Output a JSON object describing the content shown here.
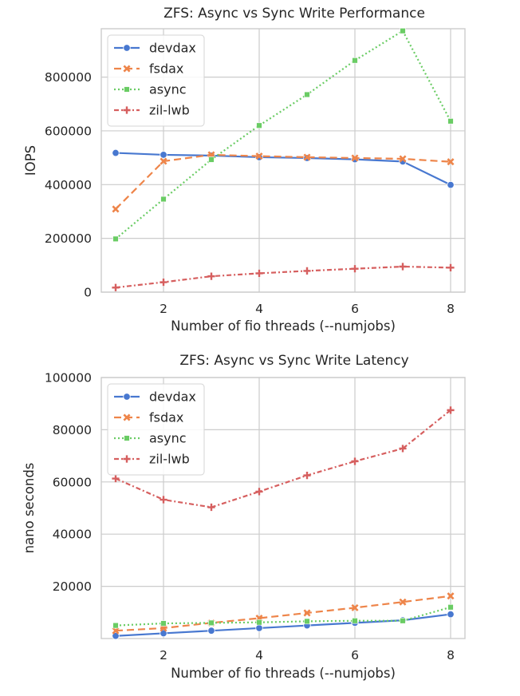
{
  "chart_data": [
    {
      "type": "line",
      "title": "ZFS: Async vs Sync Write Performance",
      "xlabel": "Number of fio threads (--numjobs)",
      "ylabel": "IOPS",
      "x": [
        1,
        2,
        3,
        4,
        5,
        6,
        7,
        8
      ],
      "xlim": [
        0.7,
        8.3
      ],
      "ylim": [
        0,
        980000
      ],
      "xticks": [
        2,
        4,
        6,
        8
      ],
      "yticks": [
        0,
        200000,
        400000,
        600000,
        800000
      ],
      "grid": true,
      "legend_position": "top-left",
      "series": [
        {
          "name": "devdax",
          "color": "#4878d0",
          "dash": "",
          "marker": "circle",
          "values": [
            518000,
            511000,
            508000,
            502000,
            499000,
            494000,
            486000,
            399000
          ]
        },
        {
          "name": "fsdax",
          "color": "#ee854a",
          "dash": "9,5",
          "marker": "x",
          "values": [
            309000,
            487000,
            511000,
            506000,
            502000,
            499000,
            496000,
            485000
          ]
        },
        {
          "name": "async",
          "color": "#6acc64",
          "dash": "2,3",
          "marker": "square",
          "values": [
            198000,
            346000,
            493000,
            620000,
            735000,
            862000,
            972000,
            636000
          ]
        },
        {
          "name": "zil-lwb",
          "color": "#d65f5f",
          "dash": "6,3,2,3",
          "marker": "plus",
          "values": [
            17000,
            37000,
            59000,
            70000,
            79000,
            87000,
            95000,
            91000
          ]
        }
      ]
    },
    {
      "type": "line",
      "title": "ZFS: Async vs Sync Write Latency",
      "xlabel": "Number of fio threads (--numjobs)",
      "ylabel": "nano seconds",
      "x": [
        1,
        2,
        3,
        4,
        5,
        6,
        7,
        8
      ],
      "xlim": [
        0.7,
        8.3
      ],
      "ylim": [
        0,
        100000
      ],
      "xticks": [
        2,
        4,
        6,
        8
      ],
      "yticks": [
        20000,
        40000,
        60000,
        80000,
        100000
      ],
      "grid": true,
      "legend_position": "top-left",
      "series": [
        {
          "name": "devdax",
          "color": "#4878d0",
          "dash": "",
          "marker": "circle",
          "values": [
            1000,
            2000,
            3000,
            4000,
            5000,
            6000,
            7000,
            9300
          ]
        },
        {
          "name": "fsdax",
          "color": "#ee854a",
          "dash": "9,5",
          "marker": "x",
          "values": [
            3000,
            4000,
            6000,
            7800,
            9800,
            11800,
            14000,
            16300
          ]
        },
        {
          "name": "async",
          "color": "#6acc64",
          "dash": "2,3",
          "marker": "square",
          "values": [
            5000,
            5800,
            6000,
            6200,
            6600,
            6800,
            6800,
            12000
          ]
        },
        {
          "name": "zil-lwb",
          "color": "#d65f5f",
          "dash": "6,3,2,3",
          "marker": "plus",
          "values": [
            61300,
            53200,
            50300,
            56300,
            62500,
            67900,
            72800,
            87500
          ]
        }
      ]
    }
  ]
}
